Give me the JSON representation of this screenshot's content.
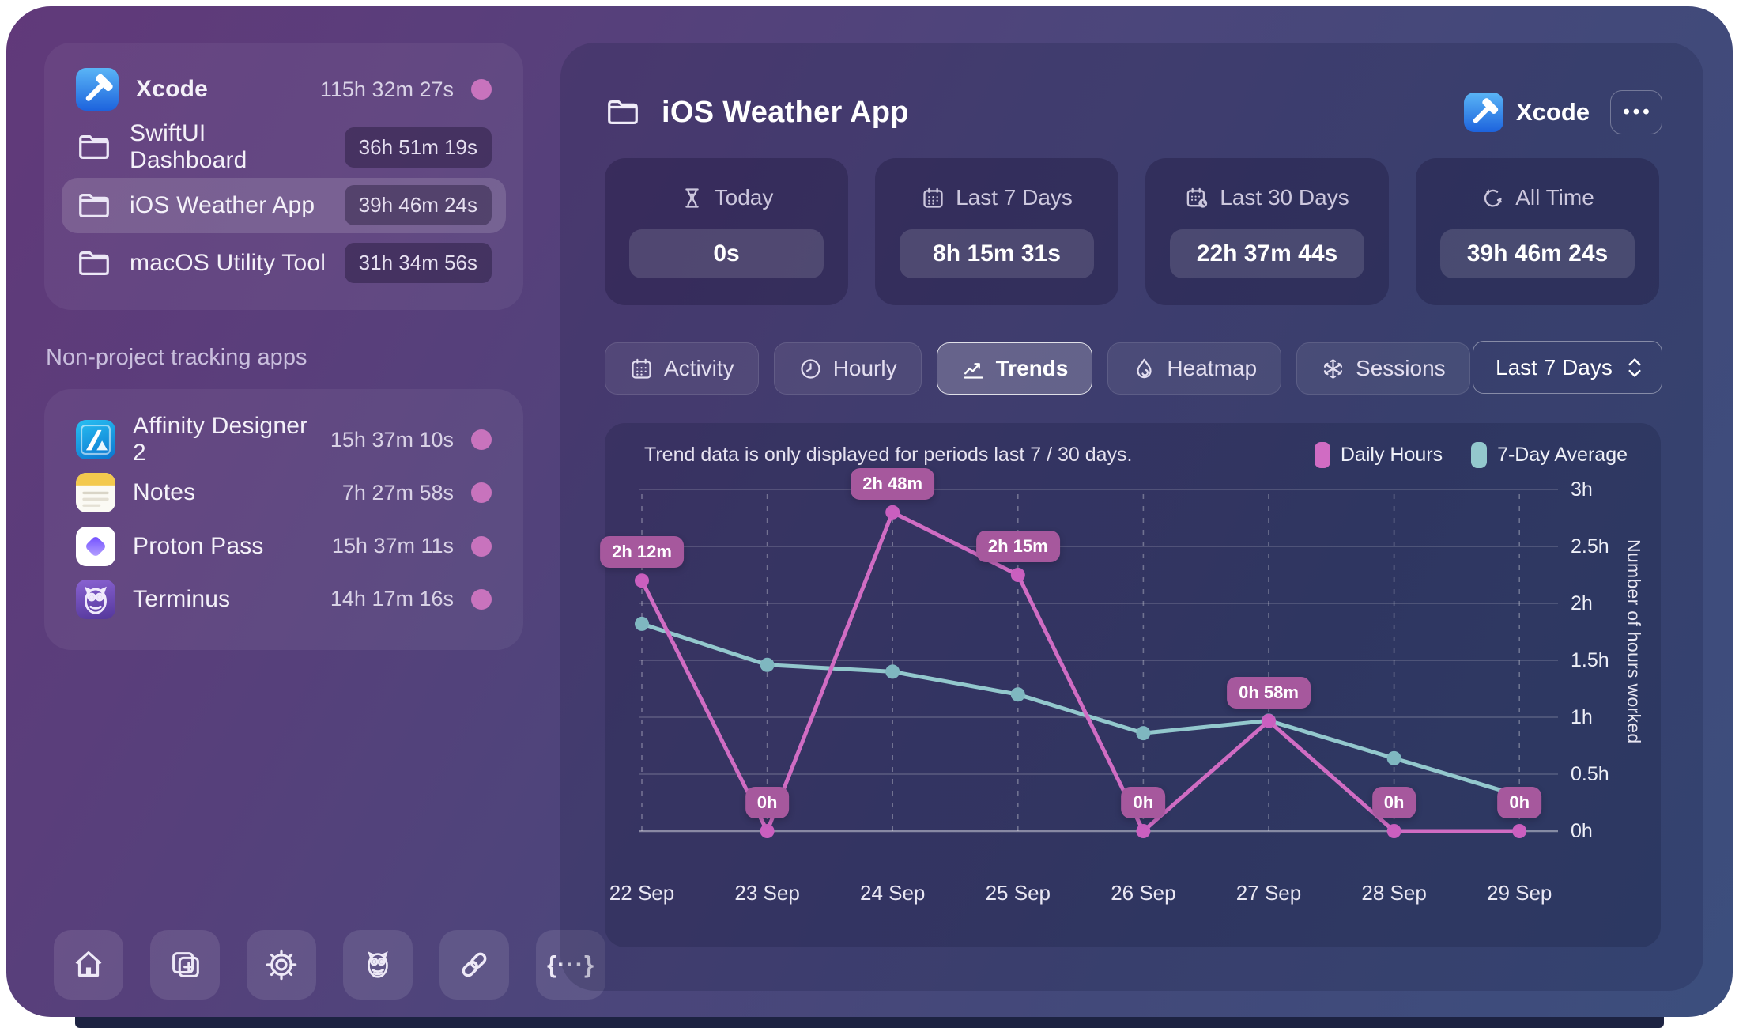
{
  "sidebar": {
    "projects": [
      {
        "name": "Xcode",
        "time": "115h 32m 27s",
        "icon": "xcode-app-icon"
      },
      {
        "name": "SwiftUI Dashboard",
        "time": "36h 51m 19s",
        "icon": "folder-icon"
      },
      {
        "name": "iOS Weather App",
        "time": "39h 46m 24s",
        "icon": "folder-icon",
        "selected": true
      },
      {
        "name": "macOS Utility Tool",
        "time": "31h 34m 56s",
        "icon": "folder-icon"
      }
    ],
    "section_label": "Non-project tracking apps",
    "apps": [
      {
        "name": "Affinity Designer 2",
        "time": "15h 37m 10s",
        "icon": "affinity-designer-app-icon"
      },
      {
        "name": "Notes",
        "time": "7h 27m 58s",
        "icon": "notes-app-icon"
      },
      {
        "name": "Proton Pass",
        "time": "15h 37m 11s",
        "icon": "proton-pass-app-icon"
      },
      {
        "name": "Terminus",
        "time": "14h 17m 16s",
        "icon": "terminus-app-icon"
      }
    ],
    "toolbar_icons": [
      "home-icon",
      "duplicate-add-icon",
      "settings-gear-icon",
      "owl-icon",
      "link-icon",
      "code-braces-icon"
    ]
  },
  "main": {
    "title": "iOS Weather App",
    "app_badge": "Xcode",
    "menu_button": "•••",
    "stats": [
      {
        "label": "Today",
        "value": "0s",
        "icon": "hourglass-icon"
      },
      {
        "label": "Last 7 Days",
        "value": "8h 15m 31s",
        "icon": "calendar-icon"
      },
      {
        "label": "Last 30 Days",
        "value": "22h 37m 44s",
        "icon": "calendar-clock-icon"
      },
      {
        "label": "All Time",
        "value": "39h 46m 24s",
        "icon": "history-sparkle-icon"
      }
    ],
    "tabs": [
      {
        "label": "Activity",
        "icon": "calendar-icon",
        "active": false
      },
      {
        "label": "Hourly",
        "icon": "clock-icon",
        "active": false
      },
      {
        "label": "Trends",
        "icon": "trend-line-icon",
        "active": true
      },
      {
        "label": "Heatmap",
        "icon": "flame-drop-icon",
        "active": false
      },
      {
        "label": "Sessions",
        "icon": "asterisk-icon",
        "active": false
      }
    ],
    "range_select": "Last 7 Days",
    "chart_note": "Trend data is only displayed for periods last 7 / 30 days."
  },
  "chart_data": {
    "type": "line",
    "x": [
      "22 Sep",
      "23 Sep",
      "24 Sep",
      "25 Sep",
      "26 Sep",
      "27 Sep",
      "28 Sep",
      "29 Sep"
    ],
    "series": [
      {
        "name": "Daily Hours",
        "color": "#d06cc3",
        "point_color": "#ca5fbf",
        "values_hours": [
          2.2,
          0,
          2.8,
          2.25,
          0,
          0.967,
          0,
          0
        ],
        "point_labels": [
          "2h 12m",
          "0h",
          "2h 48m",
          "2h 15m",
          "0h",
          "0h 58m",
          "0h",
          "0h"
        ]
      },
      {
        "name": "7-Day Average",
        "color": "#93c8cd",
        "point_color": "#7fb7c0",
        "values_hours": [
          1.82,
          1.46,
          1.4,
          1.2,
          0.86,
          0.97,
          0.64,
          0.31
        ]
      }
    ],
    "ylabel": "Number of hours worked",
    "yticks": [
      "0h",
      "0.5h",
      "1h",
      "1.5h",
      "2h",
      "2.5h",
      "3h"
    ],
    "ylim": [
      0,
      3
    ],
    "grid": true,
    "legend_position": "top-right"
  }
}
